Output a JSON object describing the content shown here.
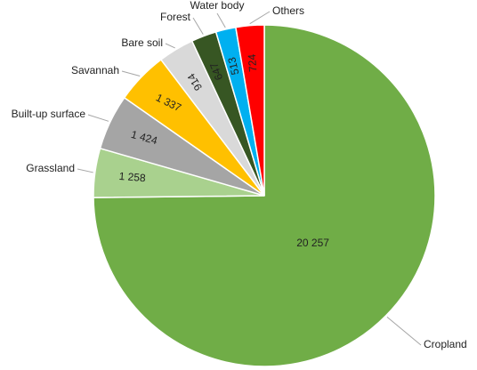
{
  "chart_data": {
    "type": "pie",
    "categories": [
      "Cropland",
      "Grassland",
      "Built-up surface",
      "Savannah",
      "Bare soil",
      "Forest",
      "Water body",
      "Others"
    ],
    "values": [
      20257,
      1258,
      1424,
      1337,
      914,
      647,
      513,
      724
    ],
    "value_labels": [
      "20 257",
      "1 258",
      "1 424",
      "1 337",
      "914",
      "647",
      "513",
      "724"
    ],
    "colors": [
      "#70ad47",
      "#a9d18e",
      "#a5a5a5",
      "#ffc000",
      "#d9d9d9",
      "#375623",
      "#00b0f0",
      "#ff0000"
    ]
  }
}
